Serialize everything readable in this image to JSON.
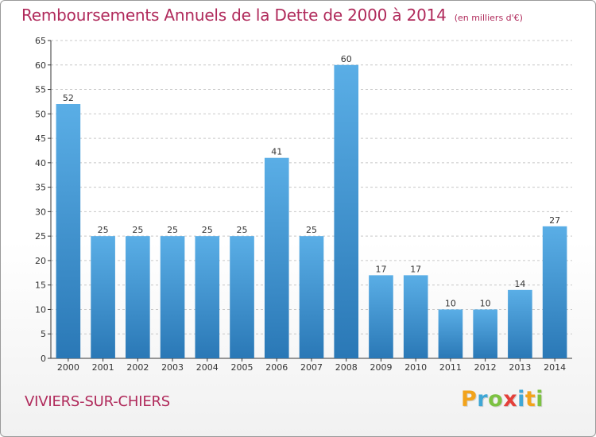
{
  "title": "Remboursements Annuels de la Dette de 2000 à 2014",
  "unit": "(en milliers d'€)",
  "city": "VIVIERS-SUR-CHIERS",
  "logo": {
    "text": "Proxiti",
    "letters": [
      "P",
      "r",
      "o",
      "x",
      "i",
      "t",
      "i"
    ],
    "colors": [
      "#f2a31b",
      "#3fa7d6",
      "#7cc242",
      "#e4403a",
      "#3fa7d6",
      "#f2a31b",
      "#7cc242"
    ]
  },
  "colors": {
    "title": "#b02a5b",
    "bar_top": "#5aaee6",
    "bar_bottom": "#2a78b6",
    "grid": "#c8c8c8",
    "axis": "#333333"
  },
  "chart_data": {
    "type": "bar",
    "categories": [
      "2000",
      "2001",
      "2002",
      "2003",
      "2004",
      "2005",
      "2006",
      "2007",
      "2008",
      "2009",
      "2010",
      "2011",
      "2012",
      "2013",
      "2014"
    ],
    "values": [
      52,
      25,
      25,
      25,
      25,
      25,
      41,
      25,
      60,
      17,
      17,
      10,
      10,
      14,
      27
    ],
    "ylim": [
      0,
      65
    ],
    "yticks": [
      0,
      5,
      10,
      15,
      20,
      25,
      30,
      35,
      40,
      45,
      50,
      55,
      60,
      65
    ],
    "grid": true,
    "data_labels": true
  }
}
